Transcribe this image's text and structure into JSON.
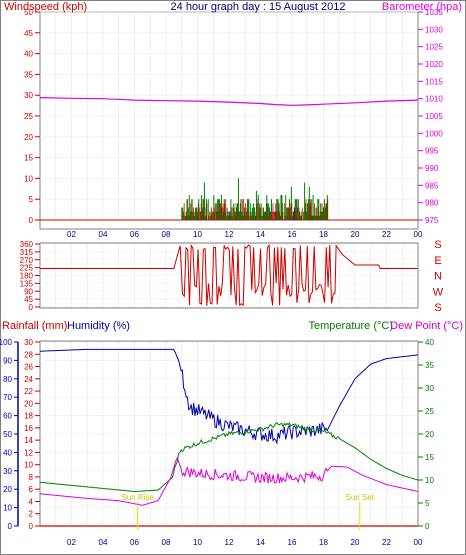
{
  "title": "24 hour graph day : 15 August 2012",
  "colors": {
    "red": "#d00000",
    "magenta": "#e000e0",
    "blue": "#0000b0",
    "green": "#008000",
    "yellow": "#e0e000",
    "grid": "#c0c0c0"
  },
  "x_ticks": [
    "02",
    "04",
    "06",
    "08",
    "10",
    "12",
    "14",
    "16",
    "18",
    "20",
    "22",
    "00"
  ],
  "chart_data": [
    {
      "id": "wind-baro",
      "type": "line",
      "left_label": "Windspeed (kph)",
      "right_label": "Barometer (hpa)",
      "left_ticks": [
        0,
        5,
        10,
        15,
        20,
        25,
        30,
        35,
        40,
        45,
        50
      ],
      "right_ticks": [
        975,
        980,
        985,
        990,
        995,
        1000,
        1005,
        1010,
        1015,
        1020,
        1025,
        1030,
        1035
      ],
      "series": [
        {
          "axis": "right",
          "color": "magenta",
          "x": [
            0,
            2,
            4,
            6,
            8,
            10,
            12,
            14,
            15,
            16,
            17,
            18,
            20,
            22,
            24
          ],
          "y": [
            1010.3,
            1010.1,
            1010.0,
            1009.6,
            1009.4,
            1009.3,
            1009.0,
            1008.6,
            1008.3,
            1008.1,
            1008.2,
            1008.4,
            1008.8,
            1009.3,
            1009.6
          ]
        }
      ],
      "wind_window": [
        9.0,
        18.3
      ],
      "wind_gust_max": 11,
      "wind_avg_max": 5
    },
    {
      "id": "wind-direction",
      "type": "line",
      "left_ticks": [
        0,
        45,
        90,
        135,
        180,
        225,
        270,
        315,
        360
      ],
      "right_ticks": [
        "S",
        "E",
        "N",
        "W",
        "S"
      ],
      "series": [
        {
          "color": "red",
          "x": [
            0,
            8.5,
            8.9,
            24
          ],
          "y": [
            220,
            220,
            320,
            220
          ]
        }
      ],
      "calm_level": 220,
      "evening_level": 240,
      "window": [
        8.9,
        18.8
      ]
    },
    {
      "id": "temp-humidity",
      "type": "line",
      "labels": {
        "rain": "Rainfall (mm)",
        "humidity": "Humidity (%)",
        "temperature": "Temperature (°C)",
        "dewpoint": "Dew Point (°C)"
      },
      "humidity_ticks": [
        0,
        10,
        20,
        30,
        40,
        50,
        60,
        70,
        80,
        90,
        100
      ],
      "rain_ticks": [
        0,
        2,
        4,
        6,
        8,
        10,
        12,
        14,
        16,
        18,
        20,
        22,
        24,
        26,
        28,
        30
      ],
      "temp_ticks": [
        0,
        5,
        10,
        15,
        20,
        25,
        30,
        35,
        40
      ],
      "series": [
        {
          "name": "Humidity (%)",
          "axis": "humidity",
          "color": "blue",
          "x": [
            0,
            3,
            6,
            8.5,
            8.8,
            9.5,
            11,
            12,
            14,
            15,
            16,
            17.5,
            18.3,
            19,
            20,
            21,
            22,
            24
          ],
          "y": [
            95,
            96,
            96,
            96,
            90,
            65,
            58,
            54,
            50,
            49,
            51,
            52,
            53,
            65,
            80,
            88,
            91,
            93
          ]
        },
        {
          "name": "Temperature (°C)",
          "axis": "temp",
          "color": "green",
          "x": [
            0,
            3,
            6,
            7.5,
            8.4,
            8.9,
            10,
            11,
            12,
            14,
            15,
            16,
            17,
            18,
            19,
            20,
            21,
            22,
            23,
            24
          ],
          "y": [
            9.5,
            8.5,
            7.5,
            7.8,
            10.5,
            16.5,
            18.0,
            19.0,
            20.0,
            21.0,
            22.0,
            22.0,
            21.0,
            20.5,
            19.0,
            17.0,
            14.5,
            12.5,
            11.0,
            10.0
          ]
        },
        {
          "name": "Dew Point (°C)",
          "axis": "temp",
          "color": "magenta",
          "x": [
            0,
            3,
            5,
            6.5,
            7.5,
            8.3,
            8.7,
            9.0,
            10,
            12,
            14,
            16,
            18,
            18.5,
            19.5,
            20.5,
            22,
            24
          ],
          "y": [
            7.0,
            6.0,
            5.5,
            4.5,
            5.5,
            10.5,
            15.0,
            12.0,
            11.5,
            11.0,
            10.5,
            10.5,
            11.0,
            13.0,
            12.8,
            11.0,
            9.0,
            7.5
          ]
        },
        {
          "name": "Rainfall (mm)",
          "axis": "rain",
          "color": "red",
          "x": [
            0,
            24
          ],
          "y": [
            0,
            0
          ]
        }
      ],
      "annotations": [
        {
          "label": "Sun Rise",
          "x": 6.2
        },
        {
          "label": "Sun Set",
          "x": 20.3
        }
      ]
    }
  ]
}
